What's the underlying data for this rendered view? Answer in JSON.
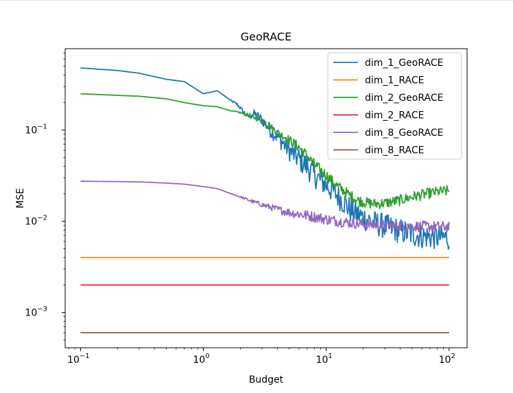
{
  "colors": {
    "dim_1_GeoRACE": "#1f77b4",
    "dim_1_RACE": "#ff7f0e",
    "dim_2_GeoRACE": "#2ca02c",
    "dim_2_RACE": "#d62728",
    "dim_8_GeoRACE": "#9467bd",
    "dim_8_RACE": "#8c564b"
  },
  "chart_data": {
    "type": "line",
    "title": "GeoRACE",
    "xlabel": "Budget",
    "ylabel": "MSE",
    "xscale": "log",
    "yscale": "log",
    "xlim": [
      0.075,
      140
    ],
    "ylim": [
      0.00041,
      0.78
    ],
    "xticks": [
      {
        "value": 0.1,
        "base": "10",
        "exp": "−1"
      },
      {
        "value": 1,
        "base": "10",
        "exp": "0"
      },
      {
        "value": 10,
        "base": "10",
        "exp": "1"
      },
      {
        "value": 100,
        "base": "10",
        "exp": "2"
      }
    ],
    "yticks": [
      {
        "value": 0.001,
        "base": "10",
        "exp": "−3"
      },
      {
        "value": 0.01,
        "base": "10",
        "exp": "−2"
      },
      {
        "value": 0.1,
        "base": "10",
        "exp": "−1"
      }
    ],
    "grid": false,
    "legend_position": "top-right",
    "series": [
      {
        "name": "dim_1_GeoRACE",
        "color": "#1f77b4",
        "x": [
          0.1,
          0.2,
          0.3,
          0.5,
          0.7,
          1.0,
          1.3,
          1.6,
          1.9,
          2.1,
          2.3,
          2.6,
          3.0,
          3.5,
          4.0,
          5.0,
          6.0,
          7.0,
          8.0,
          10,
          12,
          14,
          16,
          18,
          20,
          25,
          30,
          40,
          50,
          60,
          80,
          100
        ],
        "y": [
          0.48,
          0.45,
          0.42,
          0.36,
          0.34,
          0.25,
          0.27,
          0.22,
          0.19,
          0.16,
          0.14,
          0.15,
          0.13,
          0.1,
          0.085,
          0.06,
          0.048,
          0.04,
          0.032,
          0.025,
          0.02,
          0.016,
          0.013,
          0.012,
          0.011,
          0.0095,
          0.0088,
          0.0078,
          0.0072,
          0.0069,
          0.0067,
          0.0066
        ],
        "noise": 0.14
      },
      {
        "name": "dim_1_RACE",
        "color": "#ff7f0e",
        "x": [
          0.1,
          100
        ],
        "y": [
          0.004,
          0.004
        ],
        "noise": 0
      },
      {
        "name": "dim_2_GeoRACE",
        "color": "#2ca02c",
        "x": [
          0.1,
          0.2,
          0.3,
          0.5,
          0.7,
          1.0,
          1.3,
          1.6,
          2.0,
          2.5,
          3.0,
          3.5,
          4.0,
          5.0,
          6.0,
          7.0,
          8.0,
          10,
          12,
          15,
          18,
          22,
          25,
          30,
          40,
          50,
          60,
          80,
          100
        ],
        "y": [
          0.25,
          0.24,
          0.235,
          0.22,
          0.2,
          0.185,
          0.18,
          0.165,
          0.155,
          0.14,
          0.125,
          0.11,
          0.095,
          0.078,
          0.065,
          0.052,
          0.042,
          0.032,
          0.025,
          0.02,
          0.017,
          0.0158,
          0.0155,
          0.0158,
          0.017,
          0.0185,
          0.0195,
          0.021,
          0.0215
        ],
        "noise": 0.06
      },
      {
        "name": "dim_2_RACE",
        "color": "#d62728",
        "x": [
          0.1,
          100
        ],
        "y": [
          0.002,
          0.002
        ],
        "noise": 0
      },
      {
        "name": "dim_8_GeoRACE",
        "color": "#9467bd",
        "x": [
          0.1,
          0.2,
          0.3,
          0.5,
          0.7,
          1.0,
          1.3,
          1.6,
          2.0,
          2.5,
          3.0,
          4.0,
          5.0,
          6.0,
          8.0,
          10,
          15,
          20,
          30,
          50,
          100
        ],
        "y": [
          0.0275,
          0.0272,
          0.027,
          0.0262,
          0.0255,
          0.024,
          0.0228,
          0.0205,
          0.0185,
          0.0165,
          0.0152,
          0.0135,
          0.0125,
          0.012,
          0.0112,
          0.0105,
          0.0097,
          0.0093,
          0.009,
          0.0088,
          0.0087
        ],
        "noise": 0.06
      },
      {
        "name": "dim_8_RACE",
        "color": "#8c564b",
        "x": [
          0.1,
          100
        ],
        "y": [
          0.0006,
          0.0006
        ],
        "noise": 0
      }
    ]
  }
}
